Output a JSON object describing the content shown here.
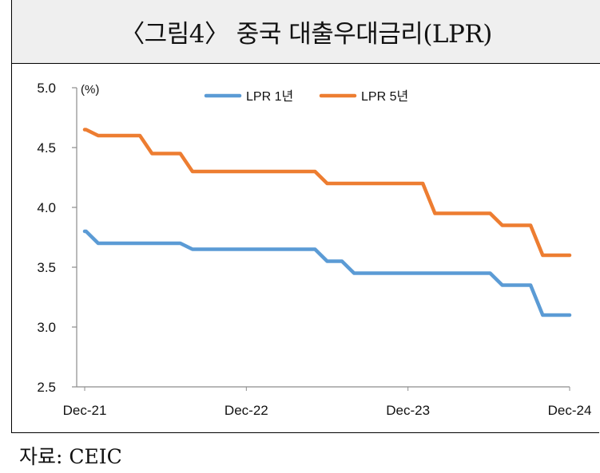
{
  "title": "〈그림4〉 중국 대출우대금리(LPR)",
  "source": "자료: CEIC",
  "chart_data": {
    "type": "line",
    "title": "〈그림4〉 중국 대출우대금리(LPR)",
    "ylabel": "(%)",
    "xlabel": "",
    "ylim": [
      2.5,
      5.0
    ],
    "yticks": [
      "2.5",
      "3.0",
      "3.5",
      "4.0",
      "4.5",
      "5.0"
    ],
    "xticks": [
      "Dec-21",
      "Dec-22",
      "Dec-23",
      "Dec-24"
    ],
    "grid": false,
    "legend_position": "top-center",
    "x": [
      "Dec-21",
      "Jan-22",
      "Feb-22",
      "Mar-22",
      "Apr-22",
      "May-22",
      "Jun-22",
      "Jul-22",
      "Aug-22",
      "Sep-22",
      "Oct-22",
      "Nov-22",
      "Dec-22",
      "Jan-23",
      "Feb-23",
      "Mar-23",
      "Apr-23",
      "May-23",
      "Jun-23",
      "Jul-23",
      "Aug-23",
      "Sep-23",
      "Oct-23",
      "Nov-23",
      "Dec-23",
      "Jan-24",
      "Feb-24",
      "Mar-24",
      "Apr-24",
      "May-24",
      "Jun-24",
      "Jul-24",
      "Aug-24",
      "Sep-24",
      "Oct-24",
      "Nov-24",
      "Dec-24"
    ],
    "series": [
      {
        "name": "LPR 1년",
        "color": "#5b9bd5",
        "values": [
          3.8,
          3.7,
          3.7,
          3.7,
          3.7,
          3.7,
          3.7,
          3.7,
          3.65,
          3.65,
          3.65,
          3.65,
          3.65,
          3.65,
          3.65,
          3.65,
          3.65,
          3.65,
          3.55,
          3.55,
          3.45,
          3.45,
          3.45,
          3.45,
          3.45,
          3.45,
          3.45,
          3.45,
          3.45,
          3.45,
          3.45,
          3.35,
          3.35,
          3.35,
          3.1,
          3.1,
          3.1
        ]
      },
      {
        "name": "LPR 5년",
        "color": "#ed7d31",
        "values": [
          4.65,
          4.6,
          4.6,
          4.6,
          4.6,
          4.45,
          4.45,
          4.45,
          4.3,
          4.3,
          4.3,
          4.3,
          4.3,
          4.3,
          4.3,
          4.3,
          4.3,
          4.3,
          4.2,
          4.2,
          4.2,
          4.2,
          4.2,
          4.2,
          4.2,
          4.2,
          3.95,
          3.95,
          3.95,
          3.95,
          3.95,
          3.85,
          3.85,
          3.85,
          3.6,
          3.6,
          3.6
        ]
      }
    ]
  }
}
